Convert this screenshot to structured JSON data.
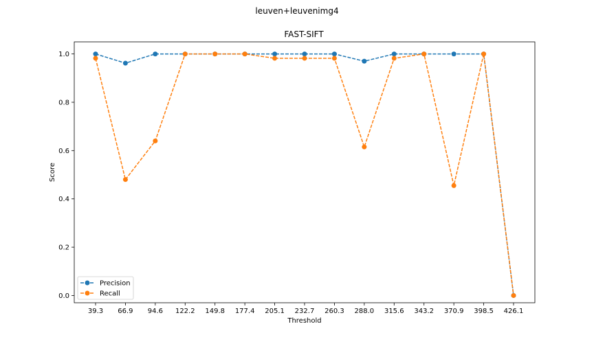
{
  "figure": {
    "suptitle": "leuven+leuvenimg4"
  },
  "chart_data": {
    "type": "line",
    "title": "FAST-SIFT",
    "xlabel": "Threshold",
    "ylabel": "Score",
    "categories": [
      "39.3",
      "66.9",
      "94.6",
      "122.2",
      "149.8",
      "177.4",
      "205.1",
      "232.7",
      "260.3",
      "288.0",
      "315.6",
      "343.2",
      "370.9",
      "398.5",
      "426.1"
    ],
    "ylim": [
      -0.03,
      1.05
    ],
    "yticks": [
      "0.0",
      "0.2",
      "0.4",
      "0.6",
      "0.8",
      "1.0"
    ],
    "ytick_values": [
      0.0,
      0.2,
      0.4,
      0.6,
      0.8,
      1.0
    ],
    "grid": false,
    "legend": "lower-left",
    "series": [
      {
        "name": "Precision",
        "color": "#1f77b4",
        "values": [
          1.0,
          0.962,
          1.0,
          1.0,
          1.0,
          1.0,
          1.0,
          1.0,
          1.0,
          0.97,
          1.0,
          1.0,
          1.0,
          1.0,
          0.0
        ]
      },
      {
        "name": "Recall",
        "color": "#ff7f0e",
        "values": [
          0.982,
          0.48,
          0.64,
          1.0,
          1.0,
          1.0,
          0.982,
          0.982,
          0.982,
          0.615,
          0.982,
          1.0,
          0.455,
          1.0,
          0.0
        ]
      }
    ]
  }
}
